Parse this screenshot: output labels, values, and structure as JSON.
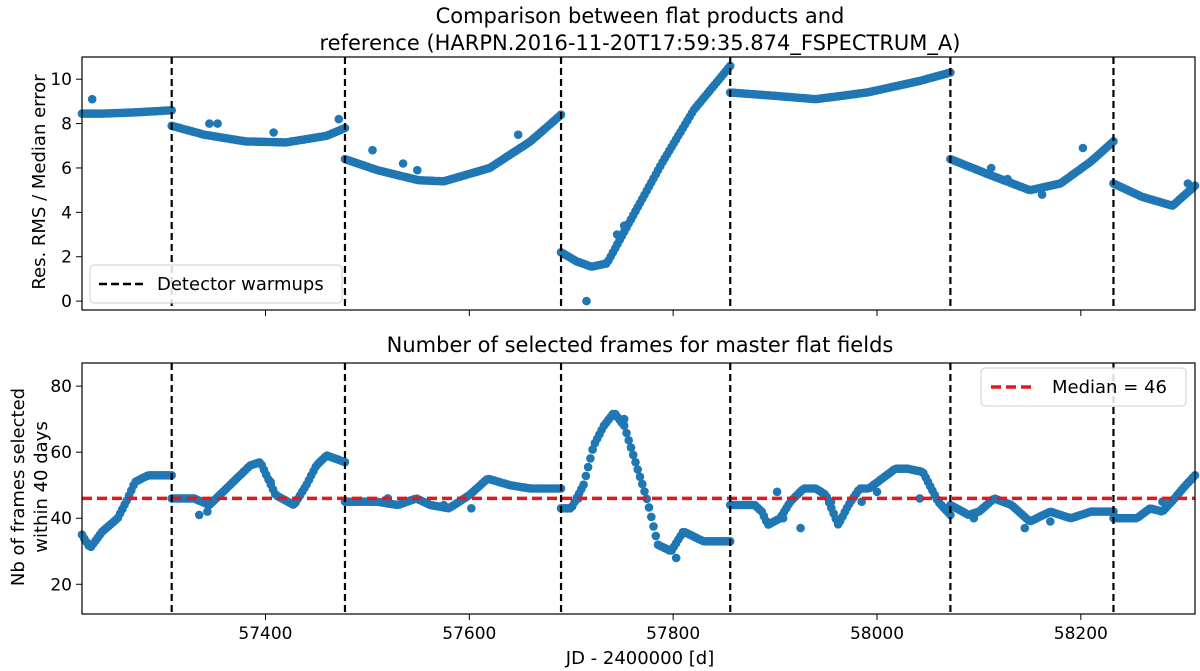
{
  "chart_data": [
    {
      "type": "scatter",
      "title_line1": "Comparison between flat products and",
      "title_line2": "reference (HARPN.2016-11-20T17:59:35.874_FSPECTRUM_A)",
      "xlabel": "",
      "ylabel": "Res. RMS / Median error",
      "xlim": [
        57220,
        58312
      ],
      "ylim": [
        -0.4,
        11
      ],
      "yticks": [
        0,
        2,
        4,
        6,
        8,
        10
      ],
      "xticks": [
        57400,
        57600,
        57800,
        58000,
        58200
      ],
      "grid": false,
      "marker_color": "#1f77b4",
      "warmup_color": "#000000",
      "warmups": [
        57308,
        57478,
        57690,
        57856,
        58072,
        58232
      ],
      "legend": {
        "placement": "lower-left",
        "entries": [
          "Detector warmups"
        ]
      },
      "segments": [
        {
          "x": [
            57220,
            57240,
            57270,
            57308
          ],
          "y": [
            8.45,
            8.45,
            8.5,
            8.6
          ]
        },
        {
          "x": [
            57308,
            57340,
            57380,
            57420,
            57460,
            57478
          ],
          "y": [
            7.9,
            7.5,
            7.2,
            7.15,
            7.45,
            7.8
          ]
        },
        {
          "x": [
            57478,
            57510,
            57550,
            57575,
            57620,
            57660,
            57690
          ],
          "y": [
            6.4,
            5.9,
            5.45,
            5.4,
            6.0,
            7.2,
            8.4
          ]
        },
        {
          "x": [
            57690,
            57705,
            57720,
            57735,
            57760,
            57790,
            57820,
            57856
          ],
          "y": [
            2.2,
            1.8,
            1.55,
            1.7,
            3.8,
            6.3,
            8.6,
            10.6
          ]
        },
        {
          "x": [
            57856,
            57900,
            57940,
            57990,
            58040,
            58072
          ],
          "y": [
            9.4,
            9.25,
            9.1,
            9.4,
            9.9,
            10.3
          ]
        },
        {
          "x": [
            58072,
            58110,
            58150,
            58180,
            58210,
            58232
          ],
          "y": [
            6.4,
            5.7,
            5.0,
            5.3,
            6.3,
            7.2
          ]
        },
        {
          "x": [
            58232,
            58260,
            58290,
            58312
          ],
          "y": [
            5.3,
            4.7,
            4.3,
            5.2
          ]
        }
      ],
      "outliers": [
        {
          "x": 57230,
          "y": 9.1
        },
        {
          "x": 57345,
          "y": 8.0
        },
        {
          "x": 57353,
          "y": 8.0
        },
        {
          "x": 57408,
          "y": 7.6
        },
        {
          "x": 57472,
          "y": 8.2
        },
        {
          "x": 57505,
          "y": 6.8
        },
        {
          "x": 57535,
          "y": 6.2
        },
        {
          "x": 57549,
          "y": 5.9
        },
        {
          "x": 57648,
          "y": 7.5
        },
        {
          "x": 57715,
          "y": 0.0
        },
        {
          "x": 57745,
          "y": 3.0
        },
        {
          "x": 57752,
          "y": 3.4
        },
        {
          "x": 58112,
          "y": 6.0
        },
        {
          "x": 58128,
          "y": 5.5
        },
        {
          "x": 58162,
          "y": 4.8
        },
        {
          "x": 58202,
          "y": 6.9
        },
        {
          "x": 58305,
          "y": 5.3
        }
      ]
    },
    {
      "type": "scatter",
      "title": "Number of selected frames for master flat fields",
      "xlabel": "JD - 2400000 [d]",
      "ylabel_line1": "Nb of frames selected",
      "ylabel_line2": "within 40 days",
      "xlim": [
        57220,
        58312
      ],
      "ylim": [
        11,
        87
      ],
      "yticks": [
        20,
        40,
        60,
        80
      ],
      "xticks": [
        57400,
        57600,
        57800,
        58000,
        58200
      ],
      "grid": false,
      "marker_color": "#1f77b4",
      "median_color": "#e31a1c",
      "median_value": 46,
      "warmup_color": "#000000",
      "warmups": [
        57308,
        57478,
        57690,
        57856,
        58072,
        58232
      ],
      "legend": {
        "placement": "top-right",
        "entries": [
          "Median = 46"
        ]
      },
      "segments": [
        {
          "x": [
            57220,
            57228,
            57240,
            57255,
            57265,
            57272,
            57285,
            57300,
            57308
          ],
          "y": [
            35,
            31,
            36,
            40,
            46,
            51,
            53,
            53,
            53
          ]
        },
        {
          "x": [
            57308,
            57330,
            57345,
            57365,
            57385,
            57395,
            57410,
            57428,
            57440,
            57450,
            57460,
            57478
          ],
          "y": [
            46,
            46,
            44,
            50,
            56,
            57,
            47,
            44,
            50,
            56,
            59,
            57
          ]
        },
        {
          "x": [
            57478,
            57510,
            57530,
            57548,
            57562,
            57580,
            57600,
            57618,
            57640,
            57660,
            57690
          ],
          "y": [
            45,
            45,
            44,
            46,
            44,
            43,
            47,
            52,
            50,
            49,
            49
          ]
        },
        {
          "x": [
            57690,
            57700,
            57712,
            57722,
            57732,
            57742,
            57752,
            57762,
            57775,
            57785,
            57798,
            57810,
            57830,
            57856
          ],
          "y": [
            43,
            43,
            50,
            62,
            68,
            72,
            68,
            58,
            45,
            32,
            30,
            36,
            33,
            33
          ]
        },
        {
          "x": [
            57856,
            57870,
            57880,
            57887,
            57893,
            57905,
            57915,
            57928,
            57940,
            57950,
            57962,
            57972,
            57983,
            57992,
            58005,
            58018,
            58030,
            58045,
            58060,
            58072
          ],
          "y": [
            44,
            44,
            44,
            42,
            38,
            40,
            45,
            49,
            49,
            47,
            38,
            44,
            49,
            49,
            52,
            55,
            55,
            54,
            45,
            41
          ]
        },
        {
          "x": [
            58072,
            58090,
            58100,
            58115,
            58132,
            58150,
            58170,
            58190,
            58210,
            58232
          ],
          "y": [
            44,
            41,
            42,
            46,
            44,
            39,
            42,
            40,
            42,
            42
          ]
        },
        {
          "x": [
            58232,
            58255,
            58268,
            58280,
            58292,
            58300,
            58312
          ],
          "y": [
            40,
            40,
            43,
            42,
            46,
            49,
            53
          ]
        }
      ],
      "outliers": [
        {
          "x": 57335,
          "y": 41
        },
        {
          "x": 57343,
          "y": 42
        },
        {
          "x": 57405,
          "y": 51
        },
        {
          "x": 57520,
          "y": 46
        },
        {
          "x": 57538,
          "y": 45
        },
        {
          "x": 57575,
          "y": 44
        },
        {
          "x": 57602,
          "y": 43
        },
        {
          "x": 57707,
          "y": 46
        },
        {
          "x": 57752,
          "y": 70
        },
        {
          "x": 57803,
          "y": 28
        },
        {
          "x": 57902,
          "y": 48
        },
        {
          "x": 57908,
          "y": 40
        },
        {
          "x": 57925,
          "y": 37
        },
        {
          "x": 57955,
          "y": 45
        },
        {
          "x": 57985,
          "y": 45
        },
        {
          "x": 58000,
          "y": 48
        },
        {
          "x": 58042,
          "y": 46
        },
        {
          "x": 58095,
          "y": 40
        },
        {
          "x": 58145,
          "y": 37
        },
        {
          "x": 58170,
          "y": 39
        },
        {
          "x": 58280,
          "y": 45
        }
      ]
    }
  ]
}
